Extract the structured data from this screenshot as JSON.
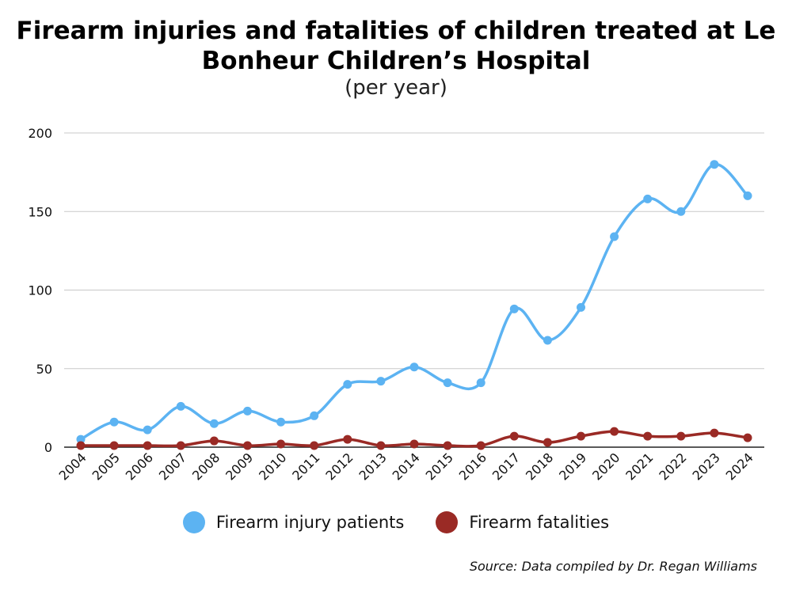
{
  "chart_data": {
    "type": "line",
    "title": "Firearm injuries and fatalities of children treated at Le Bonheur Children’s Hospital",
    "subtitle": "(per year)",
    "x": [
      "2004",
      "2005",
      "2006",
      "2007",
      "2008",
      "2009",
      "2010",
      "2011",
      "2012",
      "2013",
      "2014",
      "2015",
      "2016",
      "2017",
      "2018",
      "2019",
      "2020",
      "2021",
      "2022",
      "2023",
      "2024"
    ],
    "series": [
      {
        "name": "Firearm injury patients",
        "color": "#5cb3f2",
        "values": [
          5,
          16,
          11,
          26,
          15,
          23,
          16,
          20,
          40,
          42,
          51,
          41,
          41,
          88,
          68,
          89,
          134,
          158,
          150,
          180,
          160
        ]
      },
      {
        "name": "Firearm fatalities",
        "color": "#9a2a25",
        "values": [
          1,
          1,
          1,
          1,
          4,
          1,
          2,
          1,
          5,
          1,
          2,
          1,
          1,
          7,
          3,
          7,
          10,
          7,
          7,
          9,
          6
        ]
      }
    ],
    "ylim": [
      0,
      200
    ],
    "yticks": [
      0,
      50,
      100,
      150,
      200
    ],
    "grid": true,
    "legend_position": "bottom"
  },
  "source": "Source: Data compiled by Dr. Regan Williams"
}
